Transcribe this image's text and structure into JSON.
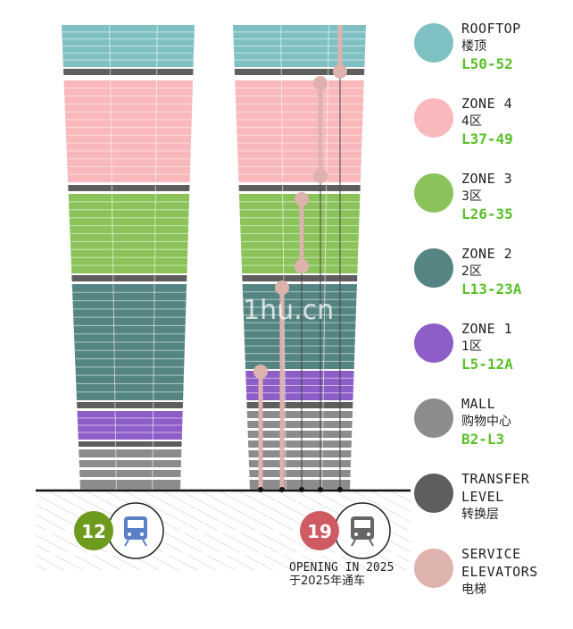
{
  "legend": [
    {
      "en": "ROOFTOP",
      "cn": "楼顶",
      "levels": "L50-52",
      "color": "#7fc1c3"
    },
    {
      "en": "ZONE 4",
      "cn": "4区",
      "levels": "L37-49",
      "color": "#f9b8bb"
    },
    {
      "en": "ZONE 3",
      "cn": "3区",
      "levels": "L26-35",
      "color": "#8bc35a"
    },
    {
      "en": "ZONE 2",
      "cn": "2区",
      "levels": "L13-23A",
      "color": "#548583"
    },
    {
      "en": "ZONE 1",
      "cn": "1区",
      "levels": "L5-12A",
      "color": "#8d5ec8"
    },
    {
      "en": "MALL",
      "cn": "购物中心",
      "levels": "B2-L3",
      "color": "#8c8c8c"
    },
    {
      "en": "TRANSFER",
      "en2": "LEVEL",
      "cn": "转换层",
      "levels": "",
      "color": "#5e5e5e"
    },
    {
      "en": "SERVICE",
      "en2": "ELEVATORS",
      "cn": "电梯",
      "levels": "",
      "color": "#deb2ad"
    }
  ],
  "stations": [
    {
      "line": "12",
      "color": "#6e9a1e",
      "icon": "train-icon"
    },
    {
      "line": "19",
      "color": "#cf5b62",
      "icon": "train-icon"
    }
  ],
  "opening_note": {
    "en": "OPENING IN 2025",
    "cn": "于2025年通车"
  },
  "watermark": "1hu.cn"
}
